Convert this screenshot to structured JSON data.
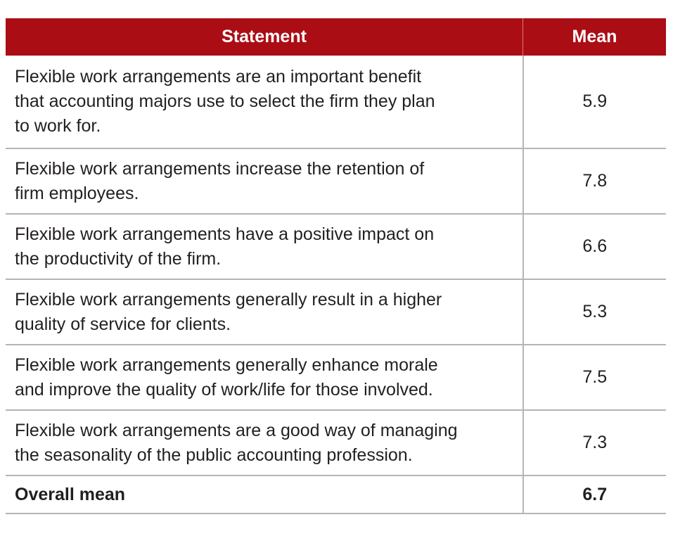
{
  "header": {
    "statement": "Statement",
    "mean": "Mean"
  },
  "rows": [
    {
      "lines": [
        "Flexible work arrangements are an important benefit",
        "that accounting majors use to select the firm they plan",
        "to work for."
      ],
      "mean": "5.9"
    },
    {
      "lines": [
        "Flexible work arrangements increase the retention of",
        "firm employees."
      ],
      "mean": "7.8"
    },
    {
      "lines": [
        "Flexible work arrangements have a positive impact on",
        "the productivity of the firm."
      ],
      "mean": "6.6"
    },
    {
      "lines": [
        "Flexible work arrangements generally result in a higher",
        "quality of service for clients."
      ],
      "mean": "5.3"
    },
    {
      "lines": [
        "Flexible work arrangements generally enhance morale",
        "and improve the quality of work/life for those involved."
      ],
      "mean": "7.5"
    },
    {
      "lines": [
        "Flexible work arrangements are a good way of managing",
        "the seasonality of the public accounting profession."
      ],
      "mean": "7.3"
    }
  ],
  "total": {
    "label": "Overall mean",
    "mean": "6.7"
  },
  "colors": {
    "header_bg": "#ab0d15",
    "rule": "#b5b5b5"
  }
}
